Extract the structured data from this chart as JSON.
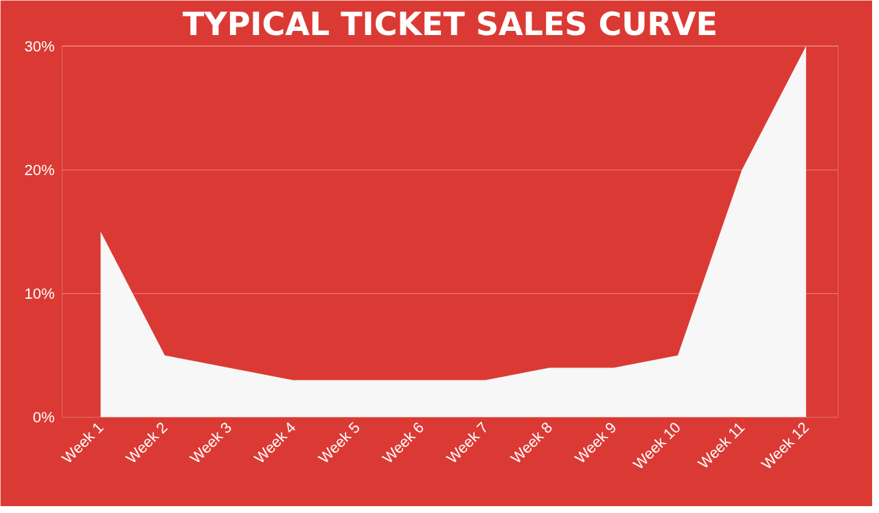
{
  "chart_data": {
    "type": "area",
    "title": "TYPICAL TICKET SALES CURVE",
    "categories": [
      "Week 1",
      "Week 2",
      "Week 3",
      "Week 4",
      "Week 5",
      "Week 6",
      "Week 7",
      "Week 8",
      "Week 9",
      "Week 10",
      "Week 11",
      "Week 12"
    ],
    "values": [
      15,
      5,
      4,
      3,
      3,
      3,
      3,
      4,
      4,
      5,
      20,
      30
    ],
    "color": "#f7f7f7",
    "ylim": [
      0,
      30
    ],
    "yticks": [
      {
        "value": 0,
        "label": "0%"
      },
      {
        "value": 10,
        "label": "10%"
      },
      {
        "value": 20,
        "label": "20%"
      },
      {
        "value": 30,
        "label": "30%"
      }
    ],
    "grid": "y"
  }
}
